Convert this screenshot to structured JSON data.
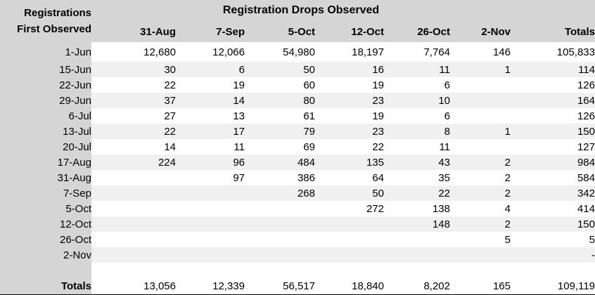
{
  "colors": {
    "header_bg": "#d5d5d5",
    "left_column_bg": "#d5d5d5",
    "stripe_bg": "#f0f0f0",
    "row_bg": "#ffffff",
    "text": "#000000",
    "totals_bottom_border": "#000000"
  },
  "table": {
    "corner_line1": "Registrations",
    "corner_line2": "First Observed",
    "title": "Registration Drops Observed",
    "columns": [
      "31-Aug",
      "7-Sep",
      "5-Oct",
      "12-Oct",
      "26-Oct",
      "2-Nov",
      "Totals"
    ],
    "rows": [
      {
        "label": "1-Jun",
        "values": [
          "12,680",
          "12,066",
          "54,980",
          "18,197",
          "7,764",
          "146",
          "105,833"
        ]
      },
      {
        "label": "15-Jun",
        "values": [
          "30",
          "6",
          "50",
          "16",
          "11",
          "1",
          "114"
        ]
      },
      {
        "label": "22-Jun",
        "values": [
          "22",
          "19",
          "60",
          "19",
          "6",
          "",
          "126"
        ]
      },
      {
        "label": "29-Jun",
        "values": [
          "37",
          "14",
          "80",
          "23",
          "10",
          "",
          "164"
        ]
      },
      {
        "label": "6-Jul",
        "values": [
          "27",
          "13",
          "61",
          "19",
          "6",
          "",
          "126"
        ]
      },
      {
        "label": "13-Jul",
        "values": [
          "22",
          "17",
          "79",
          "23",
          "8",
          "1",
          "150"
        ]
      },
      {
        "label": "20-Jul",
        "values": [
          "14",
          "11",
          "69",
          "22",
          "11",
          "",
          "127"
        ]
      },
      {
        "label": "17-Aug",
        "values": [
          "224",
          "96",
          "484",
          "135",
          "43",
          "2",
          "984"
        ]
      },
      {
        "label": "31-Aug",
        "values": [
          "",
          "97",
          "386",
          "64",
          "35",
          "2",
          "584"
        ]
      },
      {
        "label": "7-Sep",
        "values": [
          "",
          "",
          "268",
          "50",
          "22",
          "2",
          "342"
        ]
      },
      {
        "label": "5-Oct",
        "values": [
          "",
          "",
          "",
          "272",
          "138",
          "4",
          "414"
        ]
      },
      {
        "label": "12-Oct",
        "values": [
          "",
          "",
          "",
          "",
          "148",
          "2",
          "150"
        ]
      },
      {
        "label": "26-Oct",
        "values": [
          "",
          "",
          "",
          "",
          "",
          "5",
          "5"
        ]
      },
      {
        "label": "2-Nov",
        "values": [
          "",
          "",
          "",
          "",
          "",
          "",
          "-"
        ]
      }
    ],
    "totals_row": {
      "label": "Totals",
      "values": [
        "13,056",
        "12,339",
        "56,517",
        "18,840",
        "8,202",
        "165",
        "109,119"
      ]
    }
  },
  "chart_data": {
    "type": "table",
    "title": "Registration Drops Observed",
    "row_axis_label": "Registrations First Observed",
    "columns": [
      "31-Aug",
      "7-Sep",
      "5-Oct",
      "12-Oct",
      "26-Oct",
      "2-Nov",
      "Totals"
    ],
    "row_labels": [
      "1-Jun",
      "15-Jun",
      "22-Jun",
      "29-Jun",
      "6-Jul",
      "13-Jul",
      "20-Jul",
      "17-Aug",
      "31-Aug",
      "7-Sep",
      "5-Oct",
      "12-Oct",
      "26-Oct",
      "2-Nov"
    ],
    "values": [
      [
        12680,
        12066,
        54980,
        18197,
        7764,
        146,
        105833
      ],
      [
        30,
        6,
        50,
        16,
        11,
        1,
        114
      ],
      [
        22,
        19,
        60,
        19,
        6,
        null,
        126
      ],
      [
        37,
        14,
        80,
        23,
        10,
        null,
        164
      ],
      [
        27,
        13,
        61,
        19,
        6,
        null,
        126
      ],
      [
        22,
        17,
        79,
        23,
        8,
        1,
        150
      ],
      [
        14,
        11,
        69,
        22,
        11,
        null,
        127
      ],
      [
        224,
        96,
        484,
        135,
        43,
        2,
        984
      ],
      [
        null,
        97,
        386,
        64,
        35,
        2,
        584
      ],
      [
        null,
        null,
        268,
        50,
        22,
        2,
        342
      ],
      [
        null,
        null,
        null,
        272,
        138,
        4,
        414
      ],
      [
        null,
        null,
        null,
        null,
        148,
        2,
        150
      ],
      [
        null,
        null,
        null,
        null,
        null,
        5,
        5
      ],
      [
        null,
        null,
        null,
        null,
        null,
        null,
        0
      ]
    ],
    "totals": [
      13056,
      12339,
      56517,
      18840,
      8202,
      165,
      109119
    ]
  }
}
